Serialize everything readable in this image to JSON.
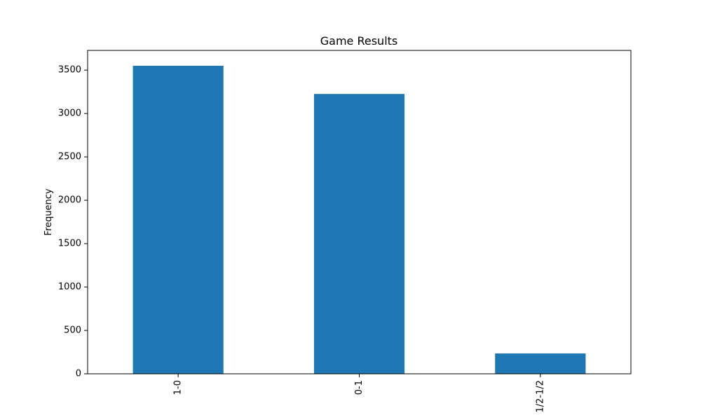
{
  "chart_data": {
    "type": "bar",
    "title": "Game Results",
    "xlabel": "",
    "ylabel": "Frequency",
    "categories": [
      "1-0",
      "0-1",
      "1/2-1/2"
    ],
    "values": [
      3550,
      3225,
      235
    ],
    "ylim": [
      0,
      3727
    ],
    "yticks": [
      0,
      500,
      1000,
      1500,
      2000,
      2500,
      3000,
      3500
    ],
    "bar_color": "#1f77b4",
    "grid": false,
    "legend": "none"
  }
}
